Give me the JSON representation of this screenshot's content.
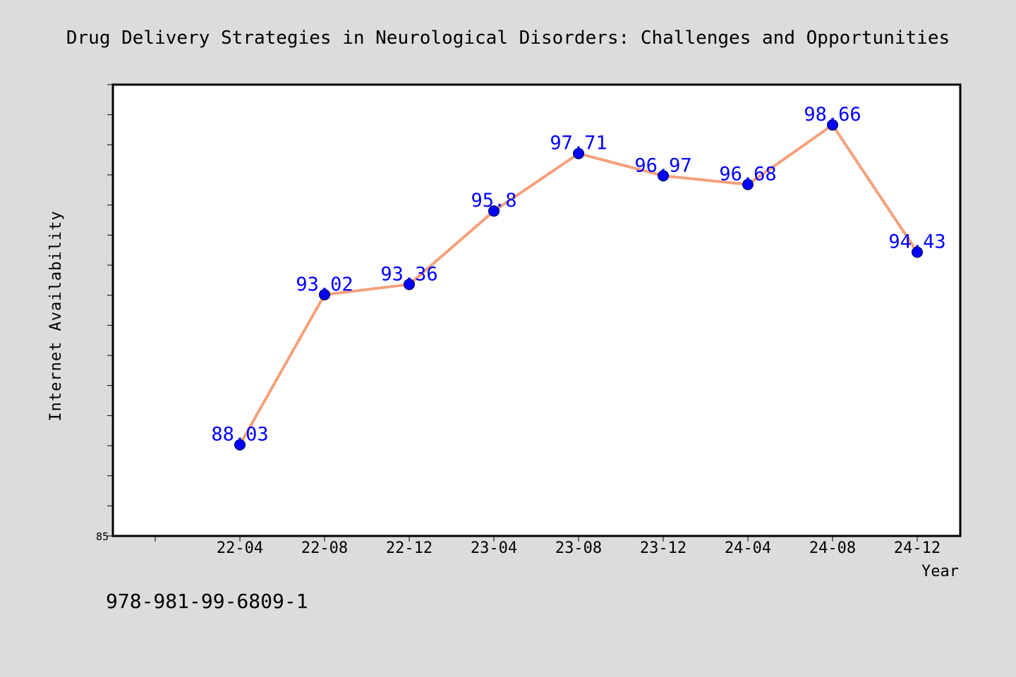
{
  "chart_data": {
    "type": "line",
    "title": "Drug Delivery Strategies in Neurological Disorders: Challenges and Opportunities",
    "xlabel": "Year",
    "ylabel": "Internet Availability",
    "categories": [
      "22-04",
      "22-08",
      "22-12",
      "23-04",
      "23-08",
      "23-12",
      "24-04",
      "24-08",
      "24-12"
    ],
    "series": [
      {
        "values": [
          88.03,
          93.02,
          93.36,
          95.8,
          97.71,
          96.97,
          96.68,
          98.66,
          94.43
        ],
        "data_labels": [
          "88.03",
          "93.02",
          "93.36",
          "95.8",
          "97.71",
          "96.97",
          "96.68",
          "98.66",
          "94.43"
        ]
      }
    ],
    "ylim": [
      85,
      100
    ],
    "ytick_labels": [
      "85"
    ],
    "grid": false,
    "line_color": "#f4a07a",
    "marker_color": "#0000ff",
    "label_color": "#0000ff"
  },
  "footer_text": "978-981-99-6809-1"
}
